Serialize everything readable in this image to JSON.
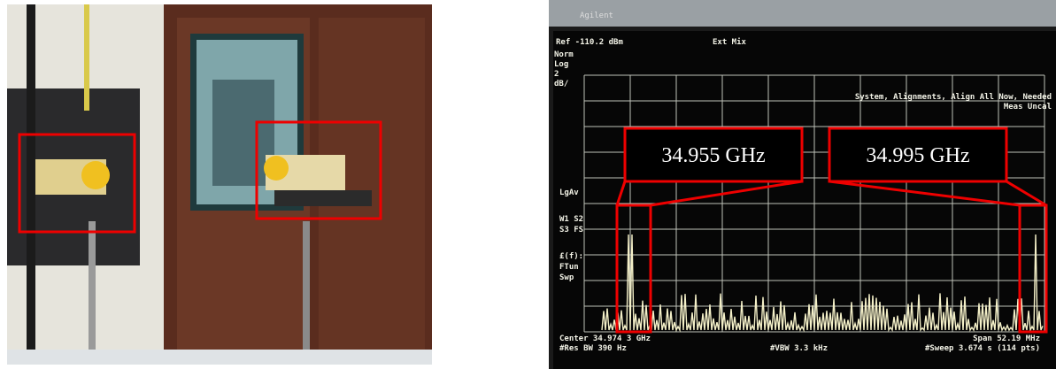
{
  "annotations": [
    "34.955 GHz",
    "34.995 GHz"
  ],
  "screen": {
    "brand": "Agilent",
    "ref": "Ref -110.2 dBm",
    "mode": "Ext Mix",
    "scale": [
      "Norm",
      "Log",
      "2",
      "dB/"
    ],
    "status": [
      "System, Alignments, Align All Now, Needed",
      "Meas Uncal"
    ],
    "side": [
      "LgAv",
      "W1  S2",
      "S3  FS",
      "£(f):",
      "FTun",
      "Swp"
    ],
    "footer": [
      "Center 34.974 3 GHz",
      "#Res BW 390 Hz",
      "#VBW 3.3 kHz",
      "Span 52.19 MHz",
      "#Sweep 3.674 s (114 pts)"
    ]
  }
}
